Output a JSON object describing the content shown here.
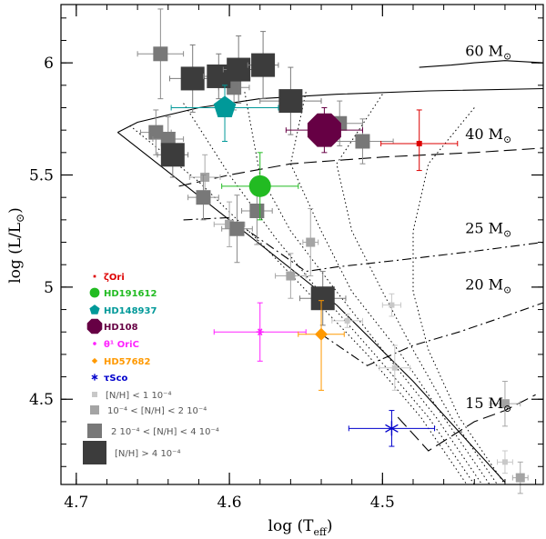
{
  "chart_data": {
    "type": "scatter",
    "xlabel": "log (T",
    "xlabel_sub": "eff",
    "xlabel_tail": ")",
    "ylabel": "log (L/L",
    "ylabel_tail": ")",
    "xlim": [
      4.71,
      4.395
    ],
    "ylim": [
      4.12,
      6.26
    ],
    "x_ticks": [
      4.7,
      4.6,
      4.5
    ],
    "x_tick_labels": [
      "4.7",
      "4.6",
      "4.5"
    ],
    "y_ticks": [
      4.5,
      5.0,
      5.5,
      6.0
    ],
    "y_tick_labels": [
      "4.5",
      "5",
      "5.5",
      "6"
    ],
    "mass_labels": [
      {
        "text": "60 M",
        "x": 4.446,
        "y": 6.03
      },
      {
        "text": "40 M",
        "x": 4.446,
        "y": 5.66
      },
      {
        "text": "25 M",
        "x": 4.446,
        "y": 5.24
      },
      {
        "text": "20 M",
        "x": 4.446,
        "y": 4.99
      },
      {
        "text": "15 M",
        "x": 4.446,
        "y": 4.46
      }
    ],
    "zams": [
      [
        4.673,
        5.69
      ],
      [
        4.6,
        5.3
      ],
      [
        4.53,
        4.92
      ],
      [
        4.48,
        4.58
      ],
      [
        4.42,
        4.13
      ]
    ],
    "tracks": [
      {
        "mass": 60,
        "style": "solid",
        "points": [
          [
            4.476,
            5.98
          ],
          [
            4.455,
            5.99
          ],
          [
            4.44,
            6.0
          ],
          [
            4.42,
            6.01
          ],
          [
            4.395,
            6.0
          ]
        ]
      },
      {
        "mass": 40,
        "style": "solid",
        "points": [
          [
            4.673,
            5.69
          ],
          [
            4.66,
            5.735
          ],
          [
            4.62,
            5.8
          ],
          [
            4.58,
            5.84
          ],
          [
            4.53,
            5.86
          ],
          [
            4.47,
            5.875
          ],
          [
            4.395,
            5.885
          ]
        ]
      },
      {
        "mass": 40,
        "style": "longdash",
        "points": [
          [
            4.633,
            5.45
          ],
          [
            4.6,
            5.5
          ],
          [
            4.56,
            5.55
          ],
          [
            4.5,
            5.58
          ],
          [
            4.44,
            5.6
          ],
          [
            4.395,
            5.62
          ]
        ]
      },
      {
        "mass": 25,
        "style": "dashdot",
        "points": [
          [
            4.63,
            5.3
          ],
          [
            4.6,
            5.31
          ],
          [
            4.55,
            5.07
          ],
          [
            4.53,
            5.09
          ],
          [
            4.49,
            5.12
          ],
          [
            4.44,
            5.16
          ],
          [
            4.395,
            5.2
          ]
        ]
      },
      {
        "mass": 20,
        "style": "dashdot",
        "points": [
          [
            4.54,
            4.79
          ],
          [
            4.51,
            4.65
          ],
          [
            4.48,
            4.74
          ],
          [
            4.45,
            4.8
          ],
          [
            4.42,
            4.87
          ],
          [
            4.395,
            4.93
          ]
        ]
      },
      {
        "mass": 15,
        "style": "longdash",
        "points": [
          [
            4.49,
            4.42
          ],
          [
            4.47,
            4.27
          ],
          [
            4.44,
            4.4
          ],
          [
            4.42,
            4.45
          ],
          [
            4.4,
            4.52
          ]
        ]
      }
    ],
    "isochrones": [
      [
        [
          4.665,
          5.72
        ],
        [
          4.62,
          5.47
        ],
        [
          4.58,
          5.2
        ],
        [
          4.545,
          4.95
        ],
        [
          4.51,
          4.7
        ],
        [
          4.475,
          4.42
        ],
        [
          4.445,
          4.12
        ]
      ],
      [
        [
          4.63,
          5.82
        ],
        [
          4.6,
          5.5
        ],
        [
          4.57,
          5.22
        ],
        [
          4.54,
          4.97
        ],
        [
          4.505,
          4.7
        ],
        [
          4.47,
          4.42
        ],
        [
          4.44,
          4.12
        ]
      ],
      [
        [
          4.59,
          5.87
        ],
        [
          4.58,
          5.5
        ],
        [
          4.56,
          5.25
        ],
        [
          4.53,
          4.98
        ],
        [
          4.5,
          4.72
        ],
        [
          4.465,
          4.42
        ],
        [
          4.435,
          4.12
        ]
      ],
      [
        [
          4.55,
          5.87
        ],
        [
          4.56,
          5.55
        ],
        [
          4.54,
          5.25
        ],
        [
          4.52,
          4.98
        ],
        [
          4.49,
          4.72
        ],
        [
          4.46,
          4.42
        ],
        [
          4.43,
          4.12
        ]
      ],
      [
        [
          4.5,
          5.86
        ],
        [
          4.53,
          5.55
        ],
        [
          4.52,
          5.25
        ],
        [
          4.5,
          4.98
        ],
        [
          4.48,
          4.72
        ],
        [
          4.455,
          4.42
        ],
        [
          4.425,
          4.12
        ]
      ],
      [
        [
          4.44,
          5.8
        ],
        [
          4.47,
          5.55
        ],
        [
          4.48,
          5.25
        ],
        [
          4.48,
          4.98
        ],
        [
          4.47,
          4.72
        ],
        [
          4.45,
          4.42
        ],
        [
          4.42,
          4.12
        ]
      ]
    ],
    "series": [
      {
        "name": "[N/H] < 1 10-4",
        "color": "#c8c8c8",
        "size": "xs",
        "points": [
          {
            "x": 4.494,
            "y": 4.92,
            "xerr": 0.006,
            "yerr": 0.05
          },
          {
            "x": 4.492,
            "y": 4.64,
            "xerr": 0.01,
            "yerr": 0.1
          },
          {
            "x": 4.42,
            "y": 4.22,
            "xerr": 0.005,
            "yerr": 0.05
          },
          {
            "x": 4.523,
            "y": 4.85,
            "xerr": 0.01,
            "yerr": 0.03
          }
        ]
      },
      {
        "name": "10-4 < [N/H] < 2 10-4",
        "color": "#a4a4a4",
        "size": "sm",
        "points": [
          {
            "x": 4.616,
            "y": 5.49,
            "xerr": 0.01,
            "yerr": 0.1
          },
          {
            "x": 4.56,
            "y": 5.05,
            "xerr": 0.01,
            "yerr": 0.1
          },
          {
            "x": 4.547,
            "y": 5.2,
            "xerr": 0.005,
            "yerr": 0.15
          },
          {
            "x": 4.42,
            "y": 4.48,
            "xerr": 0.01,
            "yerr": 0.1
          },
          {
            "x": 4.41,
            "y": 4.15,
            "xerr": 0.005,
            "yerr": 0.07
          },
          {
            "x": 4.6,
            "y": 5.28,
            "xerr": 0.01,
            "yerr": 0.1
          }
        ]
      },
      {
        "name": "2 10-4 < [N/H] < 4 10-4",
        "color": "#787878",
        "size": "md",
        "points": [
          {
            "x": 4.645,
            "y": 6.04,
            "xerr": 0.015,
            "yerr": 0.2
          },
          {
            "x": 4.648,
            "y": 5.69,
            "xerr": 0.01,
            "yerr": 0.1
          },
          {
            "x": 4.64,
            "y": 5.66,
            "xerr": 0.01,
            "yerr": 0.1
          },
          {
            "x": 4.597,
            "y": 5.89,
            "xerr": 0.01,
            "yerr": 0.1
          },
          {
            "x": 4.617,
            "y": 5.4,
            "xerr": 0.01,
            "yerr": 0.1
          },
          {
            "x": 4.582,
            "y": 5.34,
            "xerr": 0.01,
            "yerr": 0.15
          },
          {
            "x": 4.595,
            "y": 5.26,
            "xerr": 0.01,
            "yerr": 0.15
          },
          {
            "x": 4.513,
            "y": 5.65,
            "xerr": 0.02,
            "yerr": 0.1
          },
          {
            "x": 4.528,
            "y": 5.73,
            "xerr": 0.015,
            "yerr": 0.1
          }
        ]
      },
      {
        "name": "[N/H] > 4 10-4",
        "color": "#3c3c3c",
        "size": "lg",
        "points": [
          {
            "x": 4.624,
            "y": 5.93,
            "xerr": 0.015,
            "yerr": 0.15
          },
          {
            "x": 4.607,
            "y": 5.94,
            "xerr": 0.01,
            "yerr": 0.1
          },
          {
            "x": 4.594,
            "y": 5.97,
            "xerr": 0.01,
            "yerr": 0.15
          },
          {
            "x": 4.578,
            "y": 5.99,
            "xerr": 0.01,
            "yerr": 0.15
          },
          {
            "x": 4.637,
            "y": 5.59,
            "xerr": 0.01,
            "yerr": 0.1
          },
          {
            "x": 4.56,
            "y": 5.83,
            "xerr": 0.02,
            "yerr": 0.15
          },
          {
            "x": 4.539,
            "y": 4.95,
            "xerr": 0.015,
            "yerr": 0.12
          }
        ]
      }
    ],
    "stars": [
      {
        "name": "ζOri",
        "color": "#dd0000",
        "marker": "square-sm",
        "x": 4.476,
        "y": 5.64,
        "xerr": 0.025,
        "yerr_up": 0.15,
        "yerr_dn": 0.12
      },
      {
        "name": "HD191612",
        "color": "#22bb22",
        "marker": "circle",
        "x": 4.58,
        "y": 5.45,
        "xerr": 0.025,
        "yerr_up": 0.15,
        "yerr_dn": 0.15
      },
      {
        "name": "HD148937",
        "color": "#009999",
        "marker": "pentagon",
        "x": 4.603,
        "y": 5.8,
        "xerr": 0.035,
        "yerr_up": 0.1,
        "yerr_dn": 0.15
      },
      {
        "name": "HD108",
        "color": "#660044",
        "marker": "octagon",
        "x": 4.538,
        "y": 5.7,
        "xerr": 0.025,
        "yerr_up": 0.1,
        "yerr_dn": 0.1
      },
      {
        "name": "θ¹ OriC",
        "color": "#ff22ff",
        "marker": "star6",
        "x": 4.58,
        "y": 4.8,
        "xerr": 0.03,
        "yerr_up": 0.13,
        "yerr_dn": 0.13
      },
      {
        "name": "HD57682",
        "color": "#ff9900",
        "marker": "diamond",
        "x": 4.54,
        "y": 4.79,
        "xerr": 0.015,
        "yerr_up": 0.15,
        "yerr_dn": 0.25
      },
      {
        "name": "τSco",
        "color": "#0000cc",
        "marker": "asterisk",
        "x": 4.494,
        "y": 4.37,
        "xerr": 0.028,
        "yerr_up": 0.08,
        "yerr_dn": 0.08
      }
    ],
    "legend_items": [
      {
        "label": "ζOri",
        "color": "#dd0000",
        "marker": "square-sm"
      },
      {
        "label": "HD191612",
        "color": "#22bb22",
        "marker": "circle"
      },
      {
        "label": "HD148937",
        "color": "#009999",
        "marker": "pentagon"
      },
      {
        "label": "HD108",
        "color": "#660044",
        "marker": "octagon"
      },
      {
        "label": "θ¹ OriC",
        "color": "#ff22ff",
        "marker": "star6"
      },
      {
        "label": "HD57682",
        "color": "#ff9900",
        "marker": "diamond"
      },
      {
        "label": "τSco",
        "color": "#0000cc",
        "marker": "asterisk"
      },
      {
        "label": "[N/H] < 1 10⁻⁴",
        "color": "#c8c8c8",
        "marker": "sq-xs"
      },
      {
        "label": "10⁻⁴ < [N/H] < 2 10⁻⁴",
        "color": "#a4a4a4",
        "marker": "sq-sm"
      },
      {
        "label": "2 10⁻⁴ < [N/H] < 4 10⁻⁴",
        "color": "#787878",
        "marker": "sq-md"
      },
      {
        "label": "[N/H] > 4 10⁻⁴",
        "color": "#3c3c3c",
        "marker": "sq-lg"
      }
    ]
  }
}
